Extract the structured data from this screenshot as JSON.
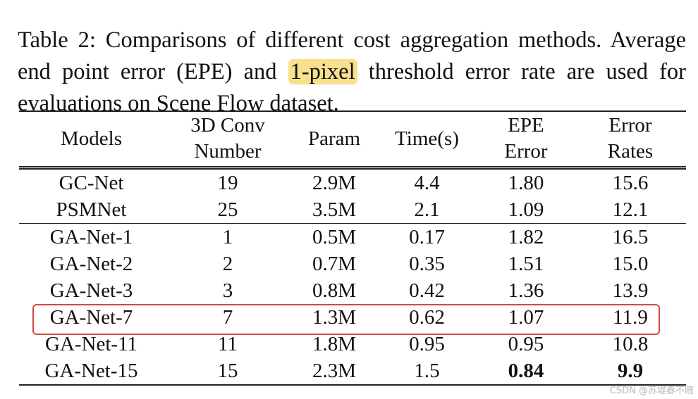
{
  "caption": {
    "label": "Table 2:",
    "text_before": " Comparisons of different cost aggregation methods. Average end point error (EPE) and ",
    "highlight": "1-pixel",
    "text_after": " threshold error rate are used for evaluations on Scene Flow dataset."
  },
  "table": {
    "headers": {
      "models": "Models",
      "conv_line1": "3D Conv",
      "conv_line2": "Number",
      "param": "Param",
      "time": "Time(s)",
      "epe_line1": "EPE",
      "epe_line2": "Error",
      "err_line1": "Error",
      "err_line2": "Rates"
    },
    "rows": [
      {
        "model": "GC-Net",
        "conv": "19",
        "param": "2.9M",
        "time": "4.4",
        "epe": "1.80",
        "err": "15.6"
      },
      {
        "model": "PSMNet",
        "conv": "25",
        "param": "3.5M",
        "time": "2.1",
        "epe": "1.09",
        "err": "12.1"
      },
      {
        "model": "GA-Net-1",
        "conv": "1",
        "param": "0.5M",
        "time": "0.17",
        "epe": "1.82",
        "err": "16.5"
      },
      {
        "model": "GA-Net-2",
        "conv": "2",
        "param": "0.7M",
        "time": "0.35",
        "epe": "1.51",
        "err": "15.0"
      },
      {
        "model": "GA-Net-3",
        "conv": "3",
        "param": "0.8M",
        "time": "0.42",
        "epe": "1.36",
        "err": "13.9"
      },
      {
        "model": "GA-Net-7",
        "conv": "7",
        "param": "1.3M",
        "time": "0.62",
        "epe": "1.07",
        "err": "11.9"
      },
      {
        "model": "GA-Net-11",
        "conv": "11",
        "param": "1.8M",
        "time": "0.95",
        "epe": "0.95",
        "err": "10.8"
      },
      {
        "model": "GA-Net-15",
        "conv": "15",
        "param": "2.3M",
        "time": "1.5",
        "epe": "0.84",
        "err": "9.9"
      }
    ]
  },
  "watermark": "CSDN @苏堤春不晓",
  "colors": {
    "highlight_fill": "#f8e08e",
    "box_stroke": "#d24a3d"
  }
}
